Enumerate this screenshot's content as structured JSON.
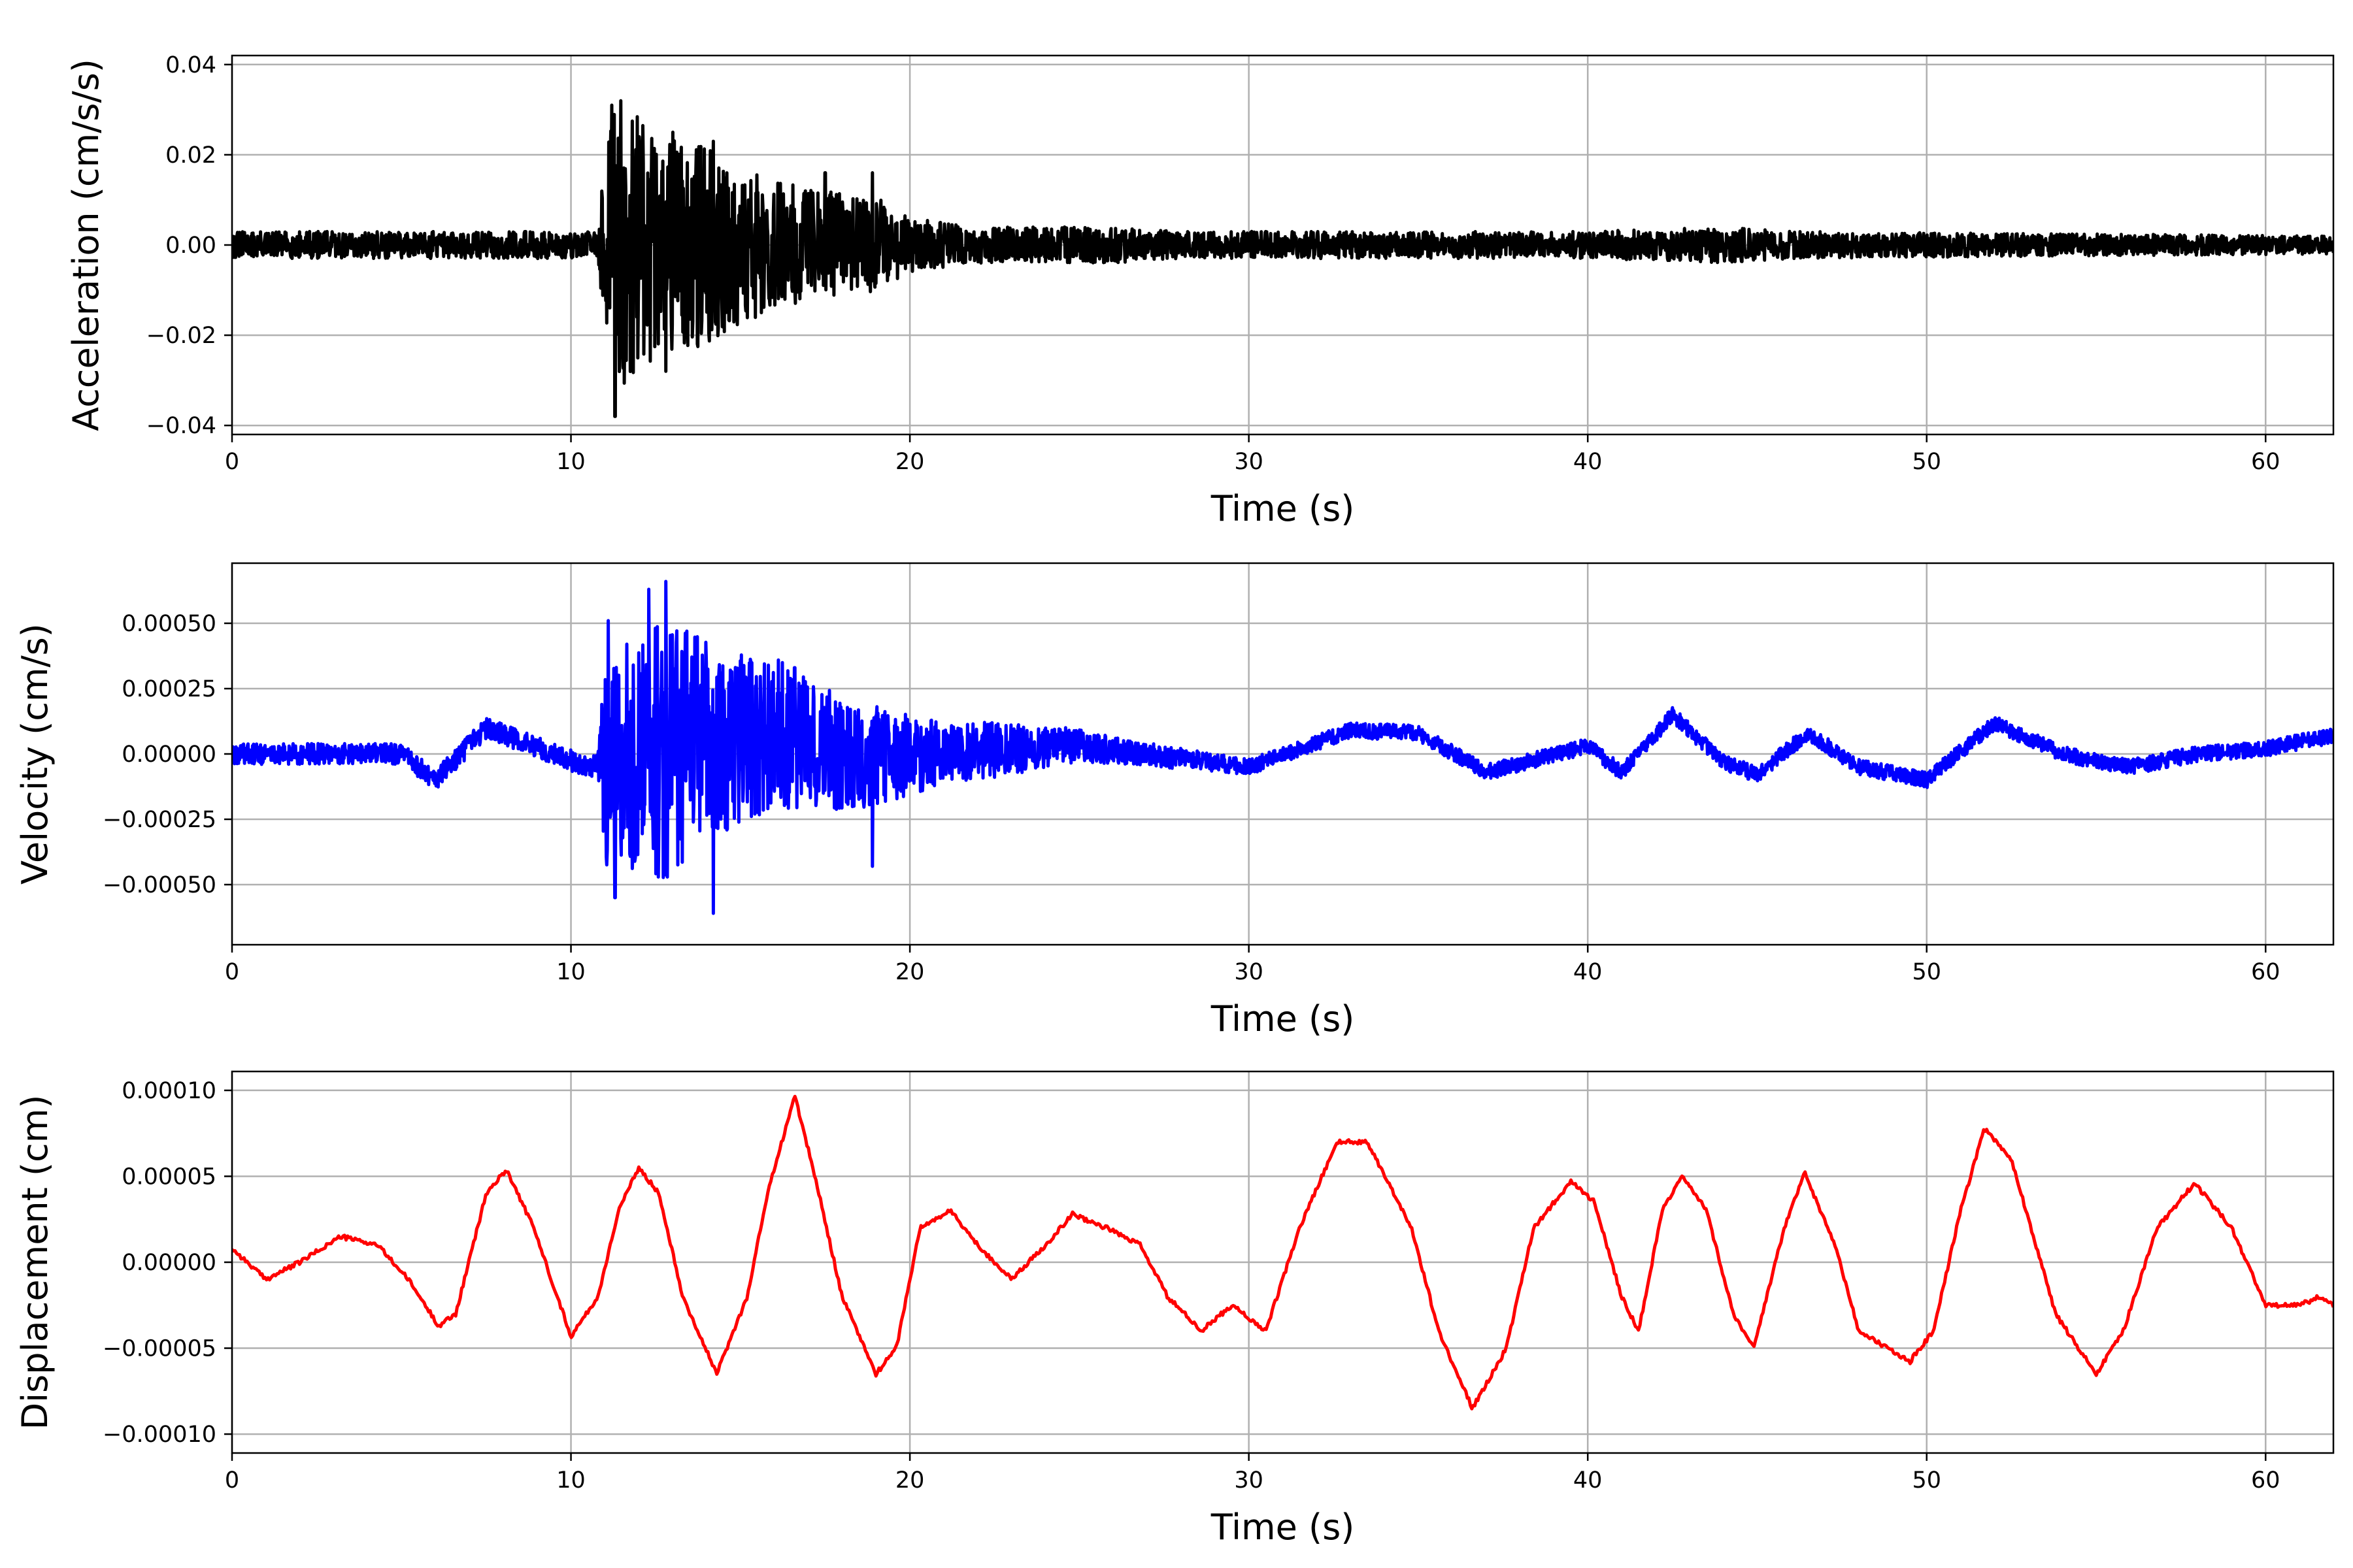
{
  "chart_data": [
    {
      "type": "line",
      "xlabel": "Time (s)",
      "ylabel": "Acceleration (cm/s/s)",
      "xlim": [
        0,
        62
      ],
      "ylim": [
        -0.042,
        0.042
      ],
      "grid": true,
      "xticks": [
        0,
        10,
        20,
        30,
        40,
        50,
        60
      ],
      "xtick_labels": [
        "0",
        "10",
        "20",
        "30",
        "40",
        "50",
        "60"
      ],
      "yticks": [
        0.04,
        0.02,
        0.0,
        -0.02,
        -0.04
      ],
      "ytick_labels": [
        "0.04",
        "0.02",
        "0.00",
        "−0.02",
        "−0.04"
      ],
      "series": [
        {
          "color": "#000000",
          "signal": "noisy",
          "envelope": [
            [
              0,
              0.003
            ],
            [
              10.8,
              0.003
            ],
            [
              11.0,
              0.02
            ],
            [
              11.3,
              0.034
            ],
            [
              12.5,
              0.025
            ],
            [
              14.0,
              0.022
            ],
            [
              16.0,
              0.014
            ],
            [
              18.0,
              0.012
            ],
            [
              19.0,
              0.011
            ],
            [
              20.0,
              0.006
            ],
            [
              22.0,
              0.004
            ],
            [
              26.0,
              0.004
            ],
            [
              28.0,
              0.003
            ],
            [
              40.0,
              0.003
            ],
            [
              44.0,
              0.004
            ],
            [
              46.0,
              0.003
            ],
            [
              62.0,
              0.002
            ]
          ],
          "peaks": [
            [
              11.2,
              0.031
            ],
            [
              11.3,
              -0.038
            ],
            [
              12.8,
              -0.028
            ],
            [
              13.0,
              0.025
            ],
            [
              14.2,
              0.023
            ],
            [
              17.5,
              0.016
            ],
            [
              18.9,
              0.016
            ]
          ]
        }
      ]
    },
    {
      "type": "line",
      "xlabel": "Time (s)",
      "ylabel": "Velocity (cm/s)",
      "xlim": [
        0,
        62
      ],
      "ylim": [
        -0.00073,
        0.00073
      ],
      "grid": true,
      "xticks": [
        0,
        10,
        20,
        30,
        40,
        50,
        60
      ],
      "xtick_labels": [
        "0",
        "10",
        "20",
        "30",
        "40",
        "50",
        "60"
      ],
      "yticks": [
        0.0005,
        0.00025,
        0.0,
        -0.00025,
        -0.0005
      ],
      "ytick_labels": [
        "0.00050",
        "0.00025",
        "0.00000",
        "−0.00025",
        "−0.00050"
      ],
      "series": [
        {
          "color": "#0000ff",
          "signal": "noisy",
          "baseline": [
            [
              0,
              0.0
            ],
            [
              2.0,
              0.0
            ],
            [
              5.0,
              0.0
            ],
            [
              6.0,
              -0.0001
            ],
            [
              7.5,
              0.0001
            ],
            [
              8.5,
              5e-05
            ],
            [
              10.5,
              -5e-05
            ],
            [
              12.0,
              0.0
            ],
            [
              16.0,
              8e-05
            ],
            [
              18.0,
              0.0
            ],
            [
              20.0,
              0.0
            ],
            [
              25.0,
              3e-05
            ],
            [
              30.0,
              -5e-05
            ],
            [
              33.0,
              9e-05
            ],
            [
              35.0,
              8e-05
            ],
            [
              37.0,
              -7e-05
            ],
            [
              40.0,
              3e-05
            ],
            [
              41.0,
              -7e-05
            ],
            [
              42.5,
              0.00015
            ],
            [
              44.0,
              -3e-05
            ],
            [
              45.0,
              -8e-05
            ],
            [
              46.5,
              8e-05
            ],
            [
              48.0,
              -5e-05
            ],
            [
              50.0,
              -0.0001
            ],
            [
              52.0,
              0.00012
            ],
            [
              54.0,
              0.0
            ],
            [
              56.0,
              -5e-05
            ],
            [
              58.0,
              0.0
            ],
            [
              60.0,
              2e-05
            ],
            [
              62.0,
              7e-05
            ]
          ],
          "envelope": [
            [
              0,
              4e-05
            ],
            [
              10.8,
              4e-05
            ],
            [
              11.0,
              0.0004
            ],
            [
              12.8,
              0.0005
            ],
            [
              14.5,
              0.00035
            ],
            [
              17.0,
              0.00025
            ],
            [
              19.0,
              0.0002
            ],
            [
              21.0,
              0.00012
            ],
            [
              23.0,
              0.0001
            ],
            [
              26.0,
              5e-05
            ],
            [
              30.0,
              3e-05
            ],
            [
              62.0,
              3e-05
            ]
          ],
          "peaks": [
            [
              11.1,
              0.00051
            ],
            [
              11.3,
              -0.00055
            ],
            [
              12.3,
              0.00063
            ],
            [
              12.8,
              0.00066
            ],
            [
              14.2,
              -0.00061
            ],
            [
              16.6,
              0.00033
            ],
            [
              18.9,
              -0.00043
            ]
          ]
        }
      ]
    },
    {
      "type": "line",
      "xlabel": "Time (s)",
      "ylabel": "Displacement (cm)",
      "xlim": [
        0,
        62
      ],
      "ylim": [
        -0.000111,
        0.000111
      ],
      "grid": true,
      "xticks": [
        0,
        10,
        20,
        30,
        40,
        50,
        60
      ],
      "xtick_labels": [
        "0",
        "10",
        "20",
        "30",
        "40",
        "50",
        "60"
      ],
      "yticks": [
        0.0001,
        5e-05,
        0.0,
        -5e-05,
        -0.0001
      ],
      "ytick_labels": [
        "0.00010",
        "0.00005",
        "0.00000",
        "−0.00005",
        "−0.00010"
      ],
      "series": [
        {
          "color": "#ff0000",
          "signal": "smooth",
          "points": [
            [
              0,
              8e-06
            ],
            [
              1.0,
              -1e-05
            ],
            [
              2.0,
              0.0
            ],
            [
              3.2,
              1.5e-05
            ],
            [
              4.3,
              1e-05
            ],
            [
              5.2,
              -1e-05
            ],
            [
              6.1,
              -3.7e-05
            ],
            [
              6.6,
              -3e-05
            ],
            [
              7.5,
              4e-05
            ],
            [
              8.1,
              5.4e-05
            ],
            [
              8.9,
              2e-05
            ],
            [
              10.0,
              -4.3e-05
            ],
            [
              10.8,
              -2e-05
            ],
            [
              11.4,
              3e-05
            ],
            [
              12.0,
              5.5e-05
            ],
            [
              12.6,
              4e-05
            ],
            [
              13.3,
              -2e-05
            ],
            [
              14.3,
              -6.5e-05
            ],
            [
              15.2,
              -2e-05
            ],
            [
              15.8,
              4e-05
            ],
            [
              16.6,
              9.7e-05
            ],
            [
              17.2,
              5e-05
            ],
            [
              18.0,
              -2e-05
            ],
            [
              19.0,
              -6.5e-05
            ],
            [
              19.6,
              -5e-05
            ],
            [
              20.3,
              2e-05
            ],
            [
              21.2,
              3e-05
            ],
            [
              22.0,
              1e-05
            ],
            [
              23.0,
              -1e-05
            ],
            [
              24.0,
              1e-05
            ],
            [
              24.8,
              2.8e-05
            ],
            [
              25.8,
              2e-05
            ],
            [
              26.8,
              1e-05
            ],
            [
              27.6,
              -2e-05
            ],
            [
              28.6,
              -4e-05
            ],
            [
              29.5,
              -2.5e-05
            ],
            [
              30.5,
              -4e-05
            ],
            [
              31.5,
              2e-05
            ],
            [
              32.6,
              7e-05
            ],
            [
              33.5,
              7e-05
            ],
            [
              34.8,
              2e-05
            ],
            [
              35.6,
              -4e-05
            ],
            [
              36.6,
              -8.5e-05
            ],
            [
              37.6,
              -5e-05
            ],
            [
              38.4,
              2e-05
            ],
            [
              39.5,
              4.7e-05
            ],
            [
              40.2,
              3.5e-05
            ],
            [
              41.0,
              -2e-05
            ],
            [
              41.5,
              -4e-05
            ],
            [
              42.2,
              3e-05
            ],
            [
              42.8,
              5e-05
            ],
            [
              43.5,
              3e-05
            ],
            [
              44.3,
              -3e-05
            ],
            [
              44.9,
              -5e-05
            ],
            [
              45.8,
              2e-05
            ],
            [
              46.4,
              5.2e-05
            ],
            [
              47.3,
              1e-05
            ],
            [
              48.0,
              -4e-05
            ],
            [
              49.5,
              -5.8e-05
            ],
            [
              50.2,
              -4e-05
            ],
            [
              51.0,
              3e-05
            ],
            [
              51.7,
              7.8e-05
            ],
            [
              52.5,
              6e-05
            ],
            [
              53.8,
              -3e-05
            ],
            [
              55.0,
              -6.5e-05
            ],
            [
              55.8,
              -4e-05
            ],
            [
              56.8,
              2e-05
            ],
            [
              57.9,
              4.6e-05
            ],
            [
              59.0,
              2e-05
            ],
            [
              60.0,
              -2.5e-05
            ],
            [
              61.0,
              -2.5e-05
            ],
            [
              61.6,
              -2e-05
            ],
            [
              62.0,
              -2.5e-05
            ]
          ]
        }
      ]
    }
  ]
}
